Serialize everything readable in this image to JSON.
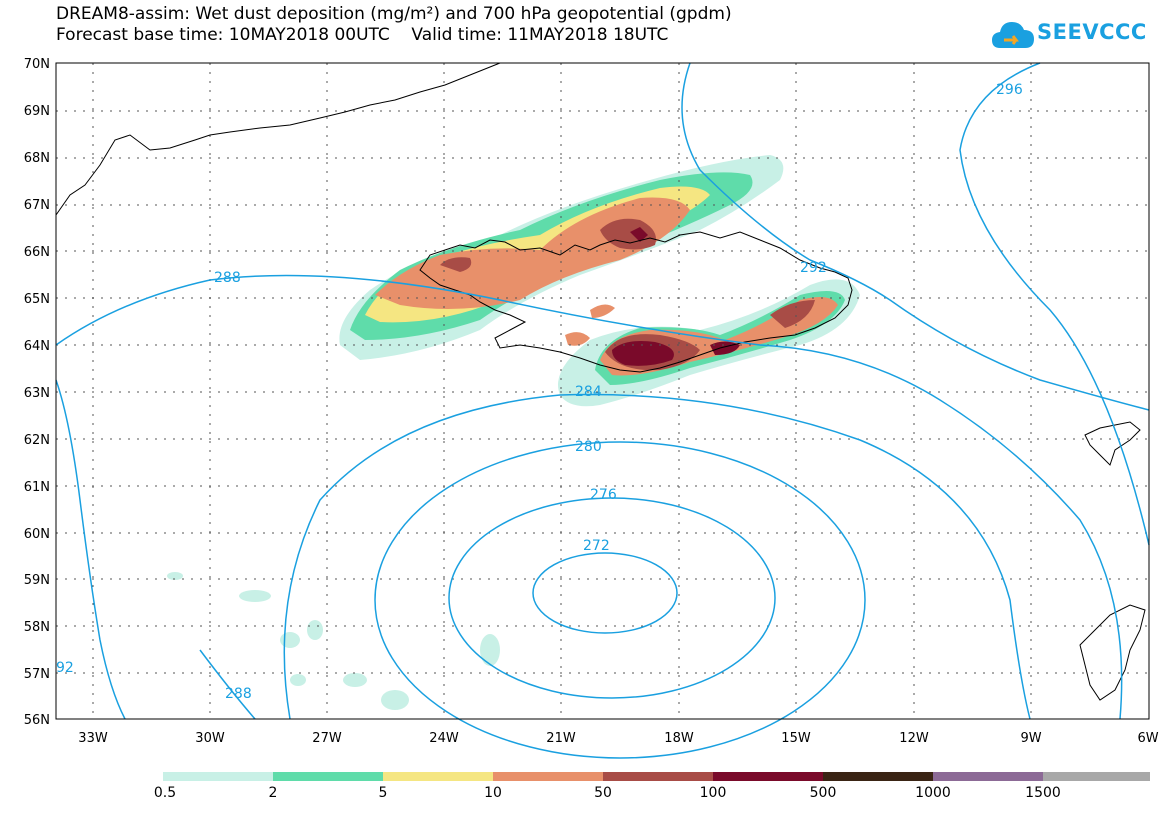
{
  "header": {
    "title_line1": "DREAM8-assim: Wet dust deposition (mg/m²) and 700 hPa geopotential (gpdm)",
    "title_line2": "Forecast base time: 10MAY2018 00UTC    Valid time: 11MAY2018 18UTC"
  },
  "logo": {
    "text": "SEEVCCC",
    "icon": "cloud-icon",
    "color": "#1aa0e0"
  },
  "map": {
    "lat_labels": [
      "70N",
      "69N",
      "68N",
      "67N",
      "66N",
      "65N",
      "64N",
      "63N",
      "62N",
      "61N",
      "60N",
      "59N",
      "58N",
      "57N",
      "56N"
    ],
    "lon_labels": [
      "33W",
      "30W",
      "27W",
      "24W",
      "21W",
      "18W",
      "15W",
      "12W",
      "9W",
      "6W"
    ],
    "contour_color": "#1aa0e0",
    "contour_labels": [
      "288",
      "296",
      "292",
      "284",
      "280",
      "276",
      "272",
      "288",
      "92"
    ]
  },
  "legend": {
    "colors": [
      "#c8f0e6",
      "#5fdcaa",
      "#f5e682",
      "#e8906a",
      "#a84c46",
      "#7a0a2a",
      "#3a2414",
      "#8c6a96",
      "#a8a8a8"
    ],
    "labels": [
      "0.5",
      "2",
      "5",
      "10",
      "50",
      "100",
      "500",
      "1000",
      "1500"
    ]
  }
}
